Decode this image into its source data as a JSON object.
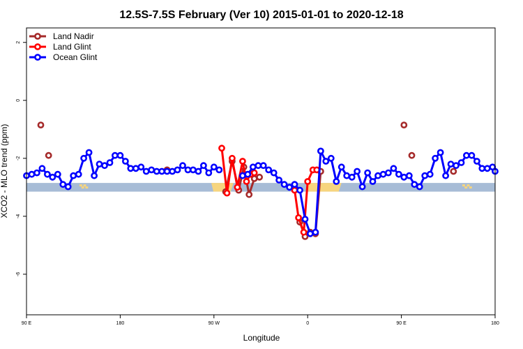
{
  "chart_data": {
    "type": "line",
    "title": "12.5S-7.5S February (Ver 10)   2015-01-01 to 2020-12-18",
    "xlabel": "Longitude",
    "ylabel": "XCO2 - MLO trend (ppm)",
    "xlim": [
      90,
      450
    ],
    "ylim": [
      -7.4,
      2.5
    ],
    "x_ticks": [
      {
        "value": 90,
        "label": "90 E"
      },
      {
        "value": 162,
        "label": "180"
      },
      {
        "value": 234,
        "label": "90 W"
      },
      {
        "value": 306,
        "label": "0"
      },
      {
        "value": 378,
        "label": "90 E"
      },
      {
        "value": 450,
        "label": "180"
      }
    ],
    "y_ticks": [
      2,
      0,
      -2,
      -4,
      -6
    ],
    "band": {
      "ymin": -3.15,
      "ymax": -2.85,
      "color": "#a7bcd6"
    },
    "land_fill_color": "#f7d57e",
    "land_fill": [
      {
        "x": [
          131,
          137
        ],
        "kind": "specks"
      },
      {
        "x": [
          232,
          249
        ],
        "kind": "block"
      },
      {
        "x": [
          305,
          332
        ],
        "kind": "block"
      },
      {
        "x": [
          425,
          432
        ],
        "kind": "specks"
      }
    ],
    "legend": {
      "position": "top-left",
      "entries": [
        {
          "label": "Land Nadir",
          "color": "#a52a2a"
        },
        {
          "label": "Land Glint",
          "color": "#ff0000"
        },
        {
          "label": "Ocean Glint",
          "color": "#0000ff"
        }
      ]
    },
    "series": [
      {
        "name": "Ocean Glint",
        "color": "#0000ff",
        "segments": [
          [
            [
              90,
              -2.6
            ],
            [
              94,
              -2.55
            ],
            [
              98,
              -2.5
            ],
            [
              102,
              -2.35
            ],
            [
              106,
              -2.55
            ],
            [
              110,
              -2.65
            ],
            [
              114,
              -2.55
            ],
            [
              118,
              -2.9
            ],
            [
              122,
              -2.98
            ],
            [
              126,
              -2.6
            ],
            [
              130,
              -2.55
            ],
            [
              134,
              -2.0
            ],
            [
              138,
              -1.8
            ],
            [
              142,
              -2.6
            ],
            [
              146,
              -2.2
            ],
            [
              150,
              -2.25
            ],
            [
              154,
              -2.15
            ],
            [
              158,
              -1.9
            ],
            [
              162,
              -1.9
            ],
            [
              166,
              -2.1
            ],
            [
              170,
              -2.35
            ],
            [
              174,
              -2.35
            ],
            [
              178,
              -2.3
            ],
            [
              182,
              -2.45
            ],
            [
              186,
              -2.4
            ],
            [
              190,
              -2.45
            ],
            [
              194,
              -2.45
            ],
            [
              198,
              -2.45
            ],
            [
              202,
              -2.45
            ],
            [
              206,
              -2.4
            ],
            [
              210,
              -2.25
            ],
            [
              214,
              -2.4
            ],
            [
              218,
              -2.4
            ],
            [
              222,
              -2.45
            ],
            [
              226,
              -2.25
            ],
            [
              230,
              -2.5
            ],
            [
              234,
              -2.3
            ],
            [
              238,
              -2.4
            ]
          ],
          [
            [
              256,
              -2.6
            ],
            [
              260,
              -2.55
            ],
            [
              264,
              -2.3
            ],
            [
              268,
              -2.25
            ],
            [
              272,
              -2.25
            ],
            [
              276,
              -2.4
            ],
            [
              280,
              -2.5
            ],
            [
              284,
              -2.75
            ],
            [
              288,
              -2.9
            ],
            [
              292,
              -3.0
            ],
            [
              296,
              -2.9
            ],
            [
              300,
              -3.1
            ],
            [
              304,
              -4.1
            ],
            [
              308,
              -4.6
            ],
            [
              312,
              -4.55
            ],
            [
              316,
              -1.75
            ],
            [
              320,
              -2.1
            ],
            [
              324,
              -2.0
            ],
            [
              328,
              -2.8
            ],
            [
              332,
              -2.3
            ],
            [
              336,
              -2.6
            ],
            [
              340,
              -2.65
            ],
            [
              344,
              -2.45
            ],
            [
              348,
              -2.98
            ],
            [
              352,
              -2.5
            ],
            [
              356,
              -2.8
            ],
            [
              360,
              -2.6
            ],
            [
              364,
              -2.55
            ],
            [
              368,
              -2.5
            ],
            [
              372,
              -2.35
            ],
            [
              376,
              -2.55
            ],
            [
              380,
              -2.65
            ],
            [
              384,
              -2.6
            ],
            [
              388,
              -2.9
            ],
            [
              392,
              -2.98
            ],
            [
              396,
              -2.6
            ],
            [
              400,
              -2.55
            ],
            [
              404,
              -2.0
            ],
            [
              408,
              -1.8
            ],
            [
              412,
              -2.6
            ],
            [
              416,
              -2.2
            ],
            [
              420,
              -2.25
            ],
            [
              424,
              -2.15
            ],
            [
              428,
              -1.9
            ],
            [
              432,
              -1.9
            ],
            [
              436,
              -2.1
            ],
            [
              440,
              -2.35
            ],
            [
              444,
              -2.35
            ],
            [
              448,
              -2.3
            ],
            [
              450,
              -2.45
            ]
          ]
        ]
      },
      {
        "name": "Land Glint",
        "color": "#ff0000",
        "segments": [
          [
            [
              240,
              -1.65
            ],
            [
              244,
              -3.2
            ],
            [
              248,
              -2.0
            ],
            [
              252,
              -3.0
            ],
            [
              256,
              -2.1
            ],
            [
              259,
              -2.8
            ],
            [
              262,
              -2.55
            ],
            [
              265,
              -2.5
            ]
          ],
          [
            [
              296,
              -3.1
            ],
            [
              299,
              -4.05
            ],
            [
              303,
              -4.55
            ],
            [
              306,
              -2.8
            ],
            [
              310,
              -2.4
            ],
            [
              313,
              -2.4
            ]
          ]
        ]
      },
      {
        "name": "Land Nadir",
        "color": "#a52a2a",
        "segments": [
          [
            [
              101,
              -0.85
            ]
          ],
          [
            [
              107,
              -1.9
            ]
          ],
          [
            [
              198,
              -2.4
            ]
          ],
          [
            [
              243,
              -3.15
            ],
            [
              248,
              -2.1
            ],
            [
              253,
              -3.1
            ],
            [
              257,
              -2.3
            ],
            [
              261,
              -3.25
            ],
            [
              265,
              -2.7
            ],
            [
              269,
              -2.65
            ]
          ],
          [
            [
              300,
              -4.2
            ],
            [
              304,
              -4.7
            ],
            [
              308,
              -4.55
            ],
            [
              312,
              -4.6
            ],
            [
              316,
              -2.45
            ]
          ],
          [
            [
              380,
              -0.85
            ]
          ],
          [
            [
              386,
              -1.9
            ]
          ],
          [
            [
              418,
              -2.45
            ]
          ]
        ]
      }
    ]
  }
}
